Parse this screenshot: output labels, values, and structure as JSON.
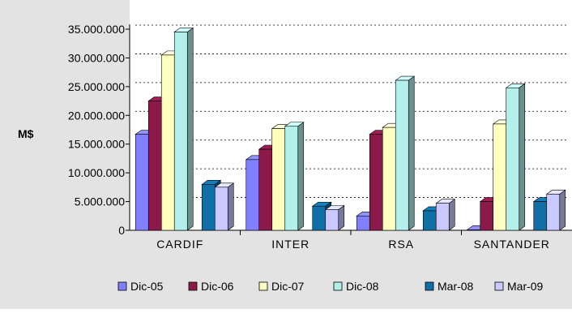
{
  "chart_data": {
    "type": "bar",
    "title": "",
    "xlabel": "",
    "ylabel": "M$",
    "ylim": [
      0,
      35000000
    ],
    "y_ticks": [
      0,
      5000000,
      10000000,
      15000000,
      20000000,
      25000000,
      30000000,
      35000000
    ],
    "y_tick_labels": [
      "0",
      "5.000.000",
      "10.000.000",
      "15.000.000",
      "20.000.000",
      "25.000.000",
      "30.000.000",
      "35.000.000"
    ],
    "grid": true,
    "legend_position": "bottom",
    "categories": [
      "CARDIF",
      "INTER",
      "RSA",
      "SANTANDER"
    ],
    "series": [
      {
        "name": "Dic-05",
        "color": "#8080ff",
        "values": [
          16700000,
          12300000,
          2500000,
          100000
        ]
      },
      {
        "name": "Dic-06",
        "color": "#8b1a4a",
        "values": [
          22500000,
          14100000,
          16700000,
          5000000
        ]
      },
      {
        "name": "Dic-07",
        "color": "#ffffc0",
        "values": [
          30500000,
          17700000,
          17900000,
          18500000
        ]
      },
      {
        "name": "Dic-08",
        "color": "#b3f0ec",
        "values": [
          34500000,
          18100000,
          26100000,
          24800000
        ]
      },
      {
        "name": "Mar-08",
        "color": "#0f6fa6",
        "values": [
          8000000,
          4200000,
          3400000,
          5000000
        ]
      },
      {
        "name": "Mar-09",
        "color": "#c9c9ff",
        "values": [
          7500000,
          3600000,
          4700000,
          6300000
        ]
      }
    ],
    "colors": {
      "plot_background": "#ffffff",
      "outer_background": "#e3e3e3",
      "gridline": "#000000"
    }
  }
}
